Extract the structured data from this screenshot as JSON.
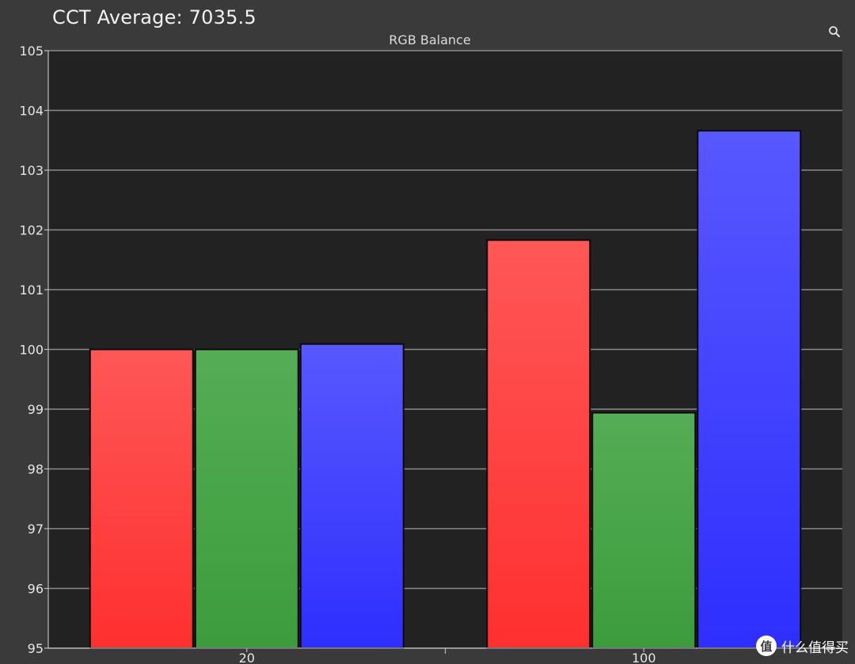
{
  "header": {
    "title": "CCT Average: 7035.5"
  },
  "toolbar": {
    "search_icon": "search-icon"
  },
  "watermark": {
    "logo_glyph": "值",
    "text": "什么值得买"
  },
  "chart_data": {
    "type": "bar",
    "title": "RGB Balance",
    "xlabel": "",
    "ylabel": "",
    "categories": [
      "20",
      "100"
    ],
    "series": [
      {
        "color": "#ff4040",
        "values": [
          100.0,
          101.83
        ]
      },
      {
        "color": "#45a445",
        "values": [
          100.0,
          98.94
        ]
      },
      {
        "color": "#3f3fff",
        "values": [
          100.09,
          103.66
        ]
      }
    ],
    "ylim": [
      95,
      105
    ],
    "yticks": [
      "95",
      "96",
      "97",
      "98",
      "99",
      "100",
      "101",
      "102",
      "103",
      "104",
      "105"
    ],
    "grid": true,
    "legend": "none",
    "background": "#222222"
  }
}
